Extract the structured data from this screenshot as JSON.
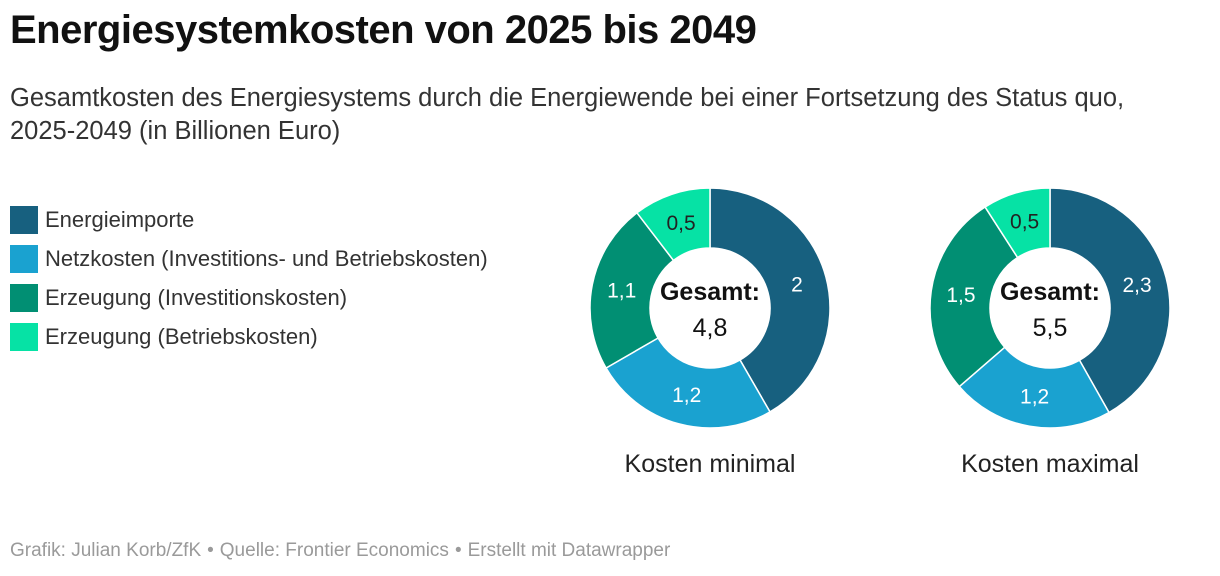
{
  "header": {
    "title": "Energiesystemkosten von 2025 bis 2049",
    "subtitle": "Gesamtkosten des Energiesystems durch die Energiewende bei einer Fortsetzung des Status quo, 2025-2049 (in Billionen Euro)"
  },
  "legend": [
    {
      "label": "Energieimporte",
      "color": "#17607f"
    },
    {
      "label": "Netzkosten (Investitions- und Betriebskosten)",
      "color": "#1aa2d0"
    },
    {
      "label": "Erzeugung (Investitionskosten)",
      "color": "#018f73"
    },
    {
      "label": "Erzeugung (Betriebskosten)",
      "color": "#06e2a5"
    }
  ],
  "chart_data": [
    {
      "type": "pie",
      "title": "Kosten minimal",
      "center_label": "Gesamt:",
      "center_value": "4,8",
      "categories": [
        "Energieimporte",
        "Netzkosten (Investitions- und Betriebskosten)",
        "Erzeugung (Investitionskosten)",
        "Erzeugung (Betriebskosten)"
      ],
      "values": [
        2,
        1.2,
        1.1,
        0.5
      ],
      "value_labels": [
        "2",
        "1,2",
        "1,1",
        "0,5"
      ],
      "colors": [
        "#17607f",
        "#1aa2d0",
        "#018f73",
        "#06e2a5"
      ]
    },
    {
      "type": "pie",
      "title": "Kosten maximal",
      "center_label": "Gesamt:",
      "center_value": "5,5",
      "categories": [
        "Energieimporte",
        "Netzkosten (Investitions- und Betriebskosten)",
        "Erzeugung (Investitionskosten)",
        "Erzeugung (Betriebskosten)"
      ],
      "values": [
        2.3,
        1.2,
        1.5,
        0.5
      ],
      "value_labels": [
        "2,3",
        "1,2",
        "1,5",
        "0,5"
      ],
      "colors": [
        "#17607f",
        "#1aa2d0",
        "#018f73",
        "#06e2a5"
      ]
    }
  ],
  "footer": {
    "credit": "Grafik: Julian Korb/ZfK",
    "source": "Quelle: Frontier Economics",
    "tool": "Erstellt mit Datawrapper"
  }
}
